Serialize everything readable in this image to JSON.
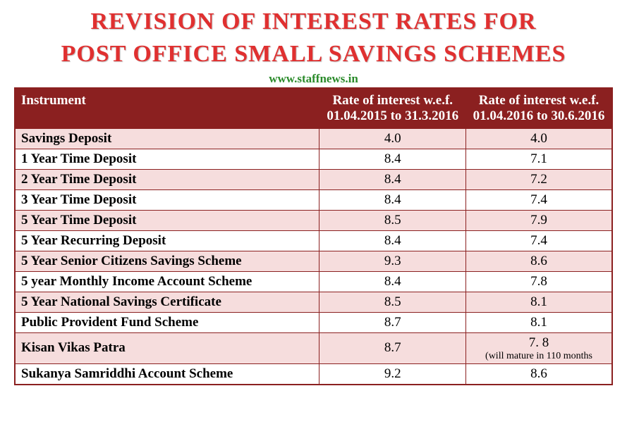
{
  "title_line1": "Revision of Interest Rates for",
  "title_line2": "Post Office Small Savings Schemes",
  "website": "www.staffnews.in",
  "columns": {
    "instrument": "Instrument",
    "rate1": "Rate of interest w.e.f. 01.04.2015 to 31.3.2016",
    "rate2": "Rate of interest w.e.f. 01.04.2016 to 30.6.2016"
  },
  "rows": [
    {
      "instrument": "Savings Deposit",
      "rate1": "4.0",
      "rate2": "4.0"
    },
    {
      "instrument": "1 Year Time Deposit",
      "rate1": "8.4",
      "rate2": "7.1"
    },
    {
      "instrument": "2 Year Time Deposit",
      "rate1": "8.4",
      "rate2": "7.2"
    },
    {
      "instrument": "3 Year Time Deposit",
      "rate1": "8.4",
      "rate2": "7.4"
    },
    {
      "instrument": "5 Year Time Deposit",
      "rate1": "8.5",
      "rate2": "7.9"
    },
    {
      "instrument": "5 Year Recurring Deposit",
      "rate1": "8.4",
      "rate2": "7.4"
    },
    {
      "instrument": "5 Year Senior Citizens Savings Scheme",
      "rate1": "9.3",
      "rate2": "8.6"
    },
    {
      "instrument": "5 year Monthly Income Account Scheme",
      "rate1": "8.4",
      "rate2": "7.8"
    },
    {
      "instrument": "5 Year National Savings Certificate",
      "rate1": "8.5",
      "rate2": "8.1"
    },
    {
      "instrument": "Public Provident Fund Scheme",
      "rate1": "8.7",
      "rate2": "8.1"
    },
    {
      "instrument": "Kisan Vikas Patra",
      "rate1": "8.7",
      "rate2": "7. 8",
      "rate2_note": "(will mature in 110 months"
    },
    {
      "instrument": "Sukanya Samriddhi Account Scheme",
      "rate1": "9.2",
      "rate2": "8.6"
    }
  ],
  "styling": {
    "title_color": "#e03030",
    "website_color": "#2a8a2a",
    "header_bg": "#8b2020",
    "header_fg": "#ffffff",
    "row_odd_bg": "#f6dddd",
    "row_even_bg": "#ffffff",
    "border_color": "#8b2020",
    "title_fontsize": 34,
    "body_fontsize": 19,
    "subnote_fontsize": 14
  }
}
